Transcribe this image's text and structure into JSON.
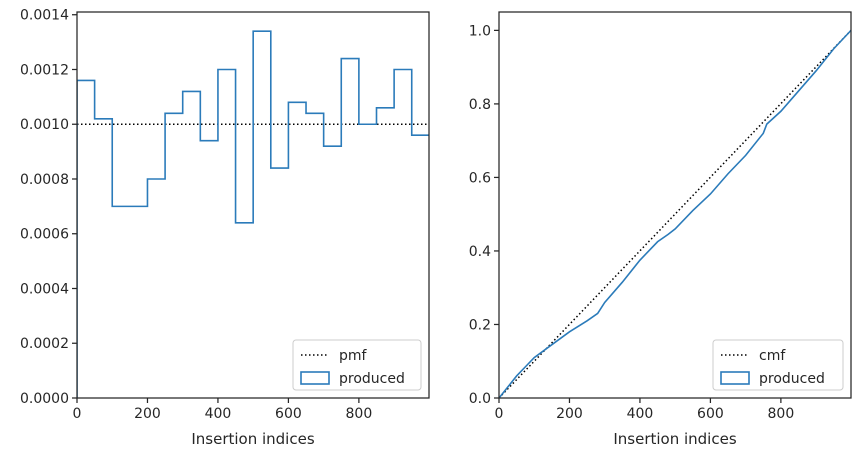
{
  "chart_data": [
    {
      "type": "step",
      "xlabel": "Insertion indices",
      "ylabel": "",
      "xlim": [
        0,
        999
      ],
      "ylim": [
        0,
        0.00141
      ],
      "xticks": [
        0,
        200,
        400,
        600,
        800
      ],
      "xtick_labels": [
        "0",
        "200",
        "400",
        "600",
        "800"
      ],
      "yticks": [
        0,
        0.0002,
        0.0004,
        0.0006,
        0.0008,
        0.001,
        0.0012,
        0.0014
      ],
      "ytick_labels": [
        "0.0000",
        "0.0002",
        "0.0004",
        "0.0006",
        "0.0008",
        "0.0010",
        "0.0012",
        "0.0014"
      ],
      "legend_position": "lower-right",
      "series": [
        {
          "name": "pmf",
          "style": "dotted",
          "color": "#000000",
          "x": [
            0,
            999
          ],
          "values": [
            0.001,
            0.001
          ]
        },
        {
          "name": "produced",
          "style": "step",
          "color": "#2b7bba",
          "bin_edges": [
            0,
            50,
            100,
            150,
            200,
            250,
            300,
            350,
            400,
            450,
            500,
            550,
            600,
            650,
            700,
            750,
            800,
            850,
            900,
            950,
            999
          ],
          "values": [
            0.00116,
            0.00102,
            0.0007,
            0.0007,
            0.0008,
            0.00104,
            0.00112,
            0.00094,
            0.0012,
            0.00064,
            0.00134,
            0.00084,
            0.00108,
            0.00104,
            0.00092,
            0.00124,
            0.001,
            0.00106,
            0.0012,
            0.00096
          ]
        }
      ]
    },
    {
      "type": "line",
      "xlabel": "Insertion indices",
      "ylabel": "",
      "xlim": [
        0,
        999
      ],
      "ylim": [
        0,
        1.05
      ],
      "xticks": [
        0,
        200,
        400,
        600,
        800
      ],
      "xtick_labels": [
        "0",
        "200",
        "400",
        "600",
        "800"
      ],
      "yticks": [
        0,
        0.2,
        0.4,
        0.6,
        0.8,
        1.0
      ],
      "ytick_labels": [
        "0.0",
        "0.2",
        "0.4",
        "0.6",
        "0.8",
        "1.0"
      ],
      "legend_position": "lower-right",
      "series": [
        {
          "name": "cmf",
          "style": "dotted",
          "color": "#000000",
          "x": [
            0,
            999
          ],
          "values": [
            0,
            1.0
          ]
        },
        {
          "name": "produced",
          "style": "line",
          "color": "#2b7bba",
          "x": [
            0,
            25,
            50,
            75,
            100,
            150,
            200,
            250,
            280,
            300,
            350,
            400,
            450,
            480,
            500,
            550,
            600,
            650,
            700,
            750,
            760,
            800,
            850,
            900,
            950,
            999
          ],
          "values": [
            0,
            0.03,
            0.06,
            0.085,
            0.11,
            0.145,
            0.18,
            0.21,
            0.23,
            0.26,
            0.315,
            0.375,
            0.425,
            0.445,
            0.46,
            0.51,
            0.555,
            0.61,
            0.66,
            0.72,
            0.745,
            0.78,
            0.835,
            0.89,
            0.95,
            1.0
          ]
        }
      ]
    }
  ]
}
